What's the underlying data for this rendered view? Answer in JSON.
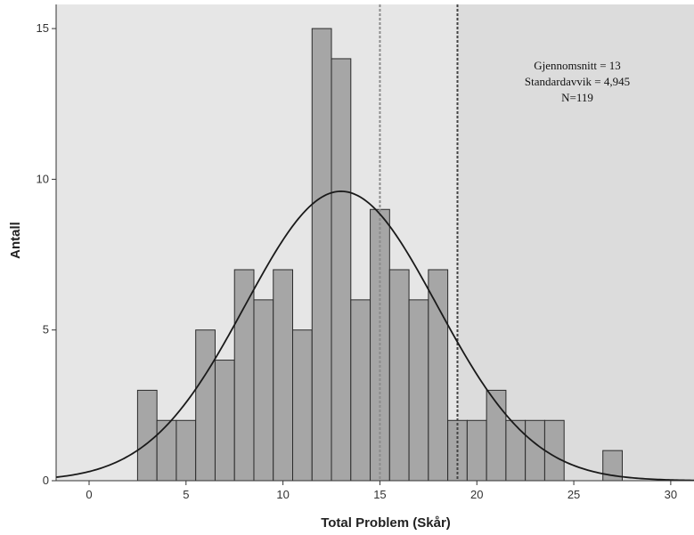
{
  "chart_data": {
    "type": "bar",
    "xlabel": "Total Problem (Skår)",
    "ylabel": "Antall",
    "xlim": [
      -1.7,
      31.2
    ],
    "ylim": [
      0,
      15.8
    ],
    "x_ticks": [
      0,
      5,
      10,
      15,
      20,
      25,
      30
    ],
    "y_ticks": [
      0,
      5,
      10,
      15
    ],
    "grid": false,
    "bin_width": 1,
    "bins": [
      {
        "x": 3,
        "count": 3
      },
      {
        "x": 4,
        "count": 2
      },
      {
        "x": 5,
        "count": 2
      },
      {
        "x": 6,
        "count": 5
      },
      {
        "x": 7,
        "count": 4
      },
      {
        "x": 8,
        "count": 7
      },
      {
        "x": 9,
        "count": 6
      },
      {
        "x": 10,
        "count": 7
      },
      {
        "x": 11,
        "count": 5
      },
      {
        "x": 12,
        "count": 15
      },
      {
        "x": 13,
        "count": 14
      },
      {
        "x": 14,
        "count": 6
      },
      {
        "x": 15,
        "count": 9
      },
      {
        "x": 16,
        "count": 7
      },
      {
        "x": 17,
        "count": 6
      },
      {
        "x": 18,
        "count": 7
      },
      {
        "x": 19,
        "count": 2
      },
      {
        "x": 20,
        "count": 2
      },
      {
        "x": 21,
        "count": 3
      },
      {
        "x": 22,
        "count": 2
      },
      {
        "x": 23,
        "count": 2
      },
      {
        "x": 24,
        "count": 2
      },
      {
        "x": 27,
        "count": 1
      }
    ],
    "normal_curve": {
      "mean": 13,
      "sd": 4.945,
      "n": 119
    },
    "reference_lines": [
      15,
      19
    ],
    "shaded_region_from": 19,
    "annotation_lines": [
      "Gjennomsnitt = 13",
      "Standardavvik = 4,945",
      "N=119"
    ],
    "colors": {
      "plot_background": "#e6e6e6",
      "shaded_region": "#dcdcdc",
      "bar_fill": "#a6a6a6",
      "bar_stroke": "#2b2b2b",
      "curve": "#1a1a1a",
      "ref_line_1": "#8c8c8c",
      "ref_line_2": "#444444"
    }
  }
}
